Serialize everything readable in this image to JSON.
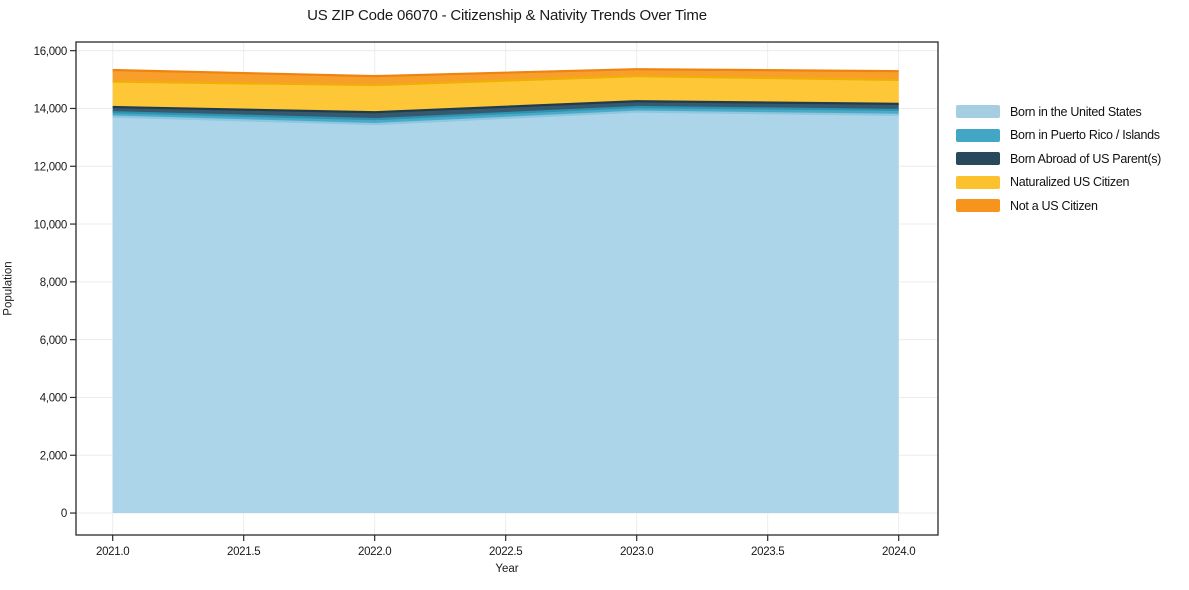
{
  "chart_data": {
    "type": "area",
    "stacked": true,
    "title": "US ZIP Code 06070 - Citizenship & Nativity Trends Over Time",
    "xlabel": "Year",
    "ylabel": "Population",
    "x": [
      2021,
      2022,
      2023,
      2024
    ],
    "series": [
      {
        "name": "Born in the United States",
        "color": "#a6cee3",
        "fill": "#a8d3e8",
        "line": "#8fc6e0",
        "values": [
          13720,
          13460,
          13890,
          13780
        ]
      },
      {
        "name": "Born in Puerto Rico / Islands",
        "color": "#41a7c4",
        "fill": "#41a7c4",
        "line": "#2d93b2",
        "values": [
          150,
          170,
          160,
          170
        ]
      },
      {
        "name": "Born Abroad of US Parent(s)",
        "color": "#28495c",
        "fill": "#2b5066",
        "line": "#1f3c4c",
        "values": [
          180,
          240,
          200,
          210
        ]
      },
      {
        "name": "Naturalized US Citizen",
        "color": "#fcc22d",
        "fill": "#fdc42c",
        "line": "#f0af07",
        "values": [
          880,
          940,
          870,
          830
        ]
      },
      {
        "name": "Not a US Citizen",
        "color": "#f7941e",
        "fill": "#f8991f",
        "line": "#ee8310",
        "values": [
          400,
          310,
          240,
          300
        ]
      }
    ],
    "x_tick_labels": [
      "2021.0",
      "2021.5",
      "2022.0",
      "2022.5",
      "2023.0",
      "2023.5",
      "2024.0"
    ],
    "y_tick_labels": [
      "0",
      "2,000",
      "4,000",
      "6,000",
      "8,000",
      "10,000",
      "12,000",
      "14,000",
      "16,000"
    ],
    "xlim": [
      2020.86,
      2024.15
    ],
    "ylim": [
      -760,
      16300
    ],
    "grid": true,
    "grid_color": "#ececec",
    "frame_color": "#2a2a2a",
    "text_color": "#1a1a1a",
    "background": "#ffffff",
    "legend_position": "right"
  }
}
